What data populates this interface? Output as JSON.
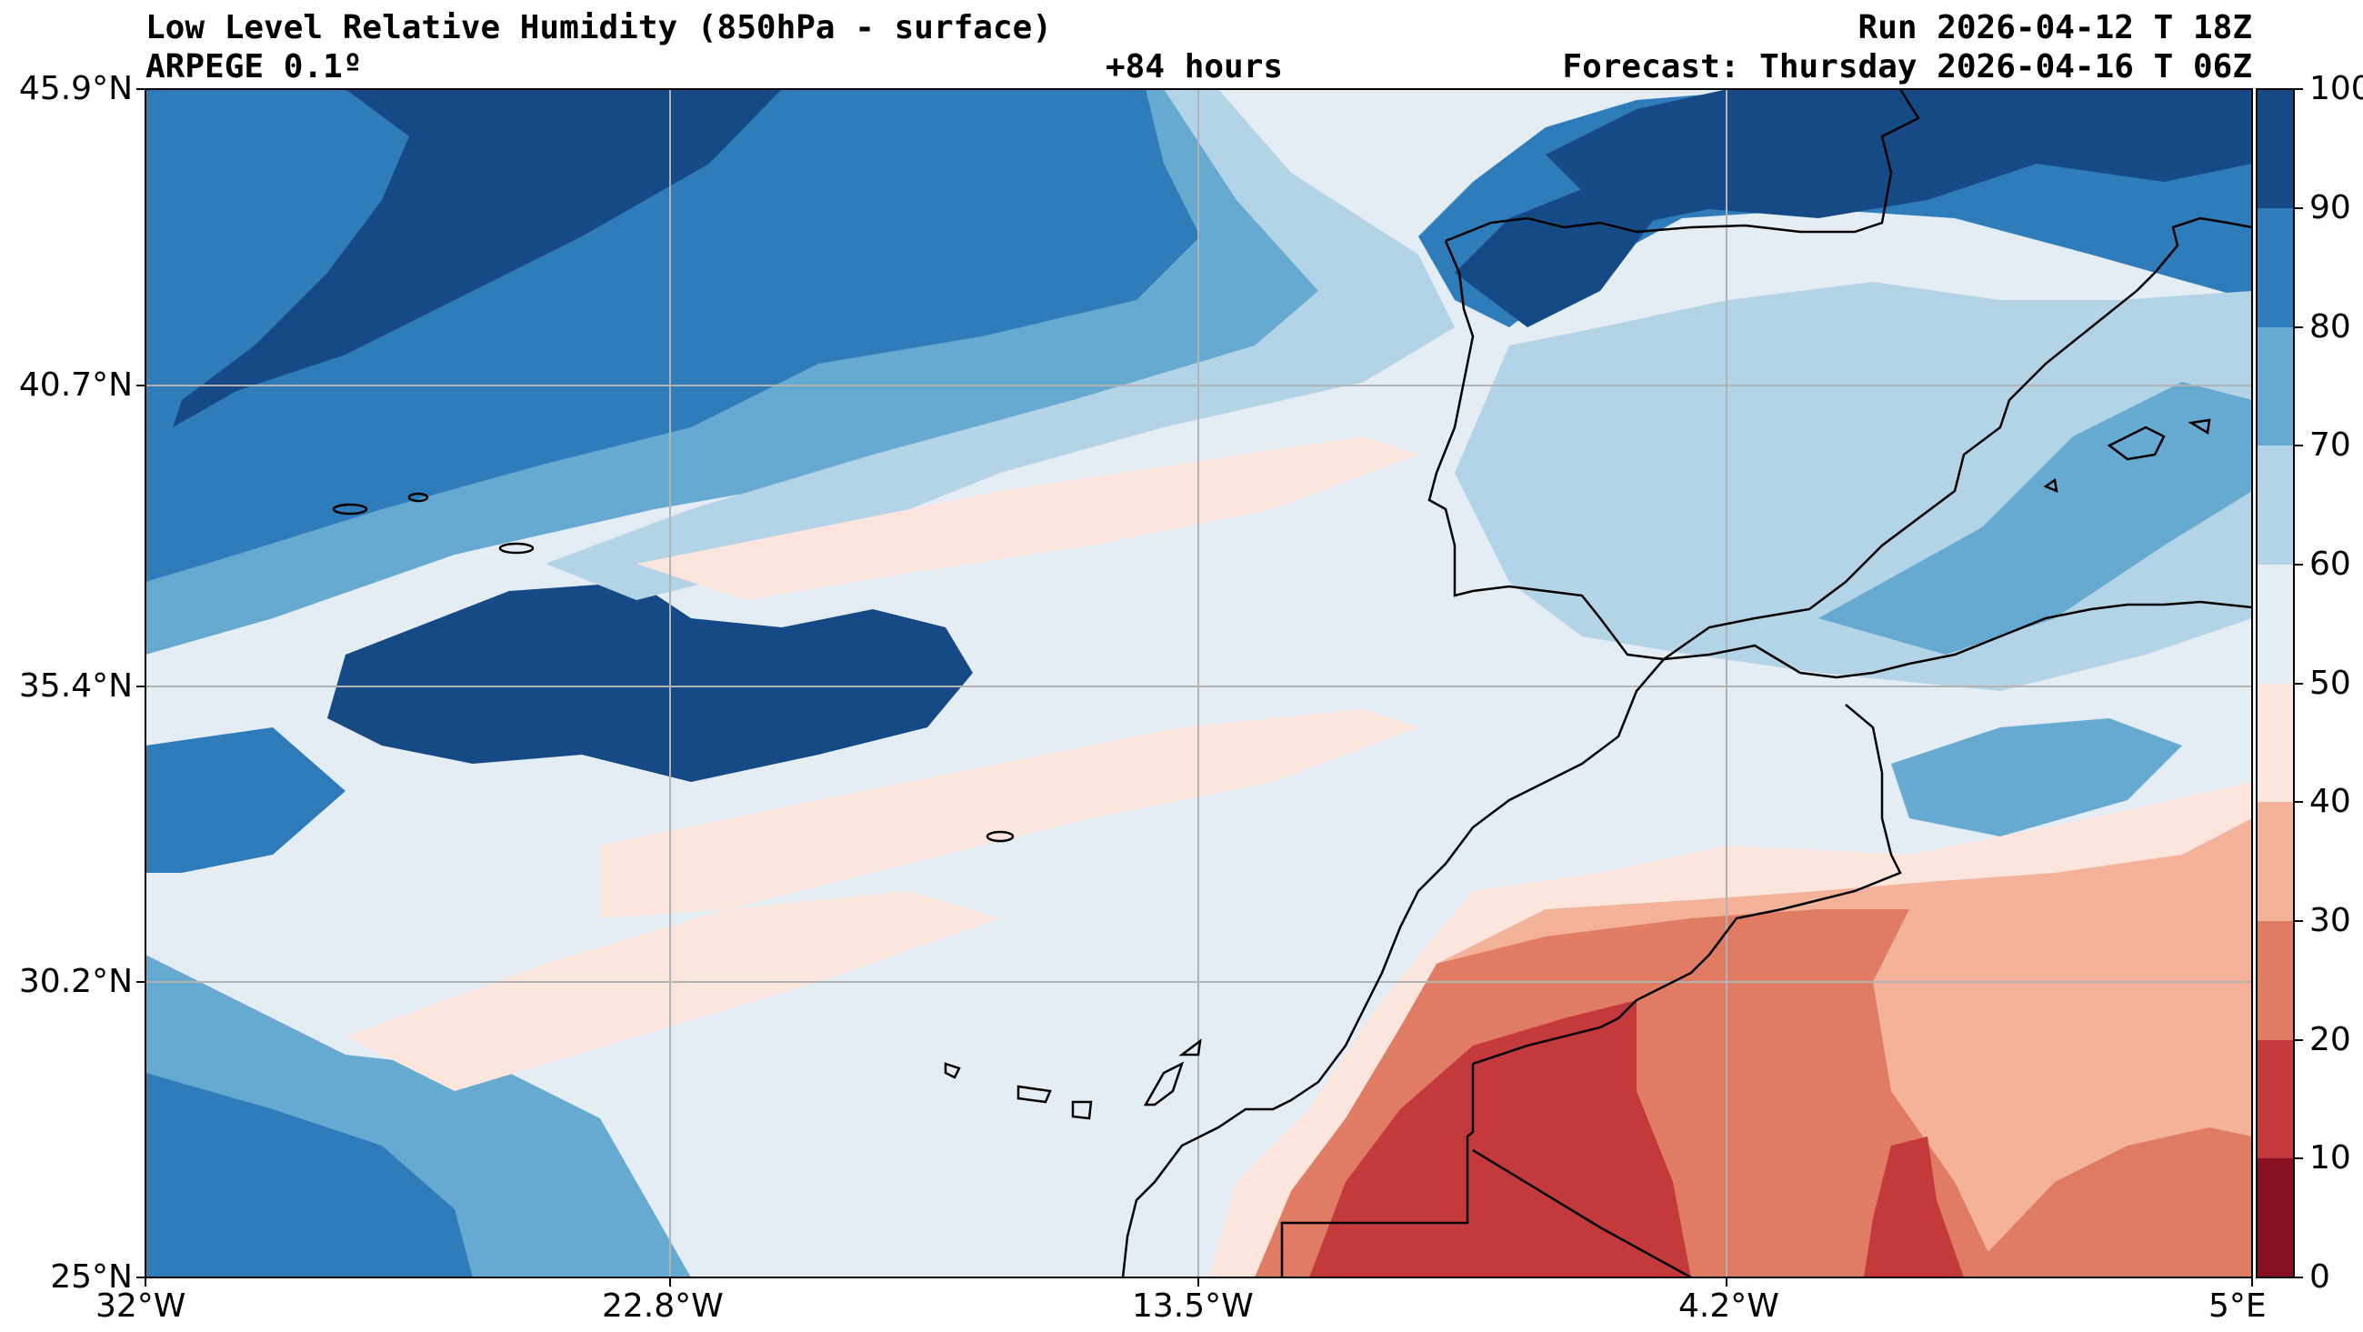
{
  "header": {
    "title_left": "Low Level Relative Humidity (850hPa - surface)",
    "model_label": "ARPEGE 0.1º",
    "lead_time": "+84 hours",
    "run_label": "Run 2026-04-12 T 18Z",
    "forecast_label": "Forecast: Thursday 2026-04-16 T 06Z"
  },
  "axes": {
    "lat_labels": [
      "45.9°N",
      "40.7°N",
      "35.4°N",
      "30.2°N",
      "25°N"
    ],
    "lon_labels": [
      "32°W",
      "22.8°W",
      "13.5°W",
      "4.2°W",
      "5°E"
    ]
  },
  "colorbar": {
    "tick_labels": [
      "100",
      "90",
      "80",
      "70",
      "60",
      "50",
      "40",
      "30",
      "20",
      "10",
      "0"
    ],
    "levels": [
      {
        "range": "90-100",
        "color": "#154a86"
      },
      {
        "range": "80-90",
        "color": "#2f7cbb"
      },
      {
        "range": "70-80",
        "color": "#66a9d1"
      },
      {
        "range": "60-70",
        "color": "#b3d4e7"
      },
      {
        "range": "50-60",
        "color": "#e4ecf4"
      },
      {
        "range": "40-50",
        "color": "#fbe5dc"
      },
      {
        "range": "30-40",
        "color": "#f4b29a"
      },
      {
        "range": "20-30",
        "color": "#e07c64"
      },
      {
        "range": "10-20",
        "color": "#c43a3c"
      },
      {
        "range": "0-10",
        "color": "#870f22"
      }
    ]
  }
}
